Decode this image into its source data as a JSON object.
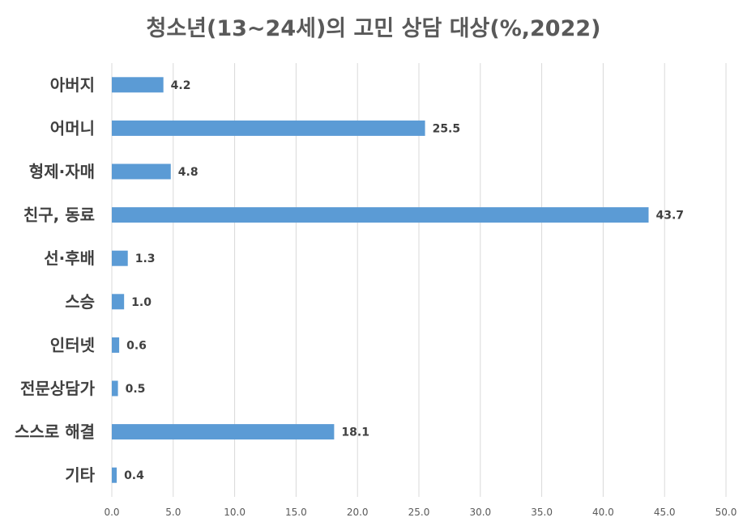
{
  "chart_data": {
    "type": "bar",
    "orientation": "horizontal",
    "title": "청소년(13~24세)의 고민 상담 대상(%,2022)",
    "categories": [
      "아버지",
      "어머니",
      "형제·자매",
      "친구, 동료",
      "선·후배",
      "스승",
      "인터넷",
      "전문상담가",
      "스스로 해결",
      "기타"
    ],
    "values": [
      4.2,
      25.5,
      4.8,
      43.7,
      1.3,
      1.0,
      0.6,
      0.5,
      18.1,
      0.4
    ],
    "value_labels": [
      "4.2",
      "25.5",
      "4.8",
      "43.7",
      "1.3",
      "1.0",
      "0.6",
      "0.5",
      "18.1",
      "0.4"
    ],
    "xlim": [
      0,
      50
    ],
    "x_ticks": [
      "0.0",
      "5.0",
      "10.0",
      "15.0",
      "20.0",
      "25.0",
      "30.0",
      "35.0",
      "40.0",
      "45.0",
      "50.0"
    ],
    "grid": true,
    "bar_color": "#5b9bd5",
    "legend": "none"
  }
}
